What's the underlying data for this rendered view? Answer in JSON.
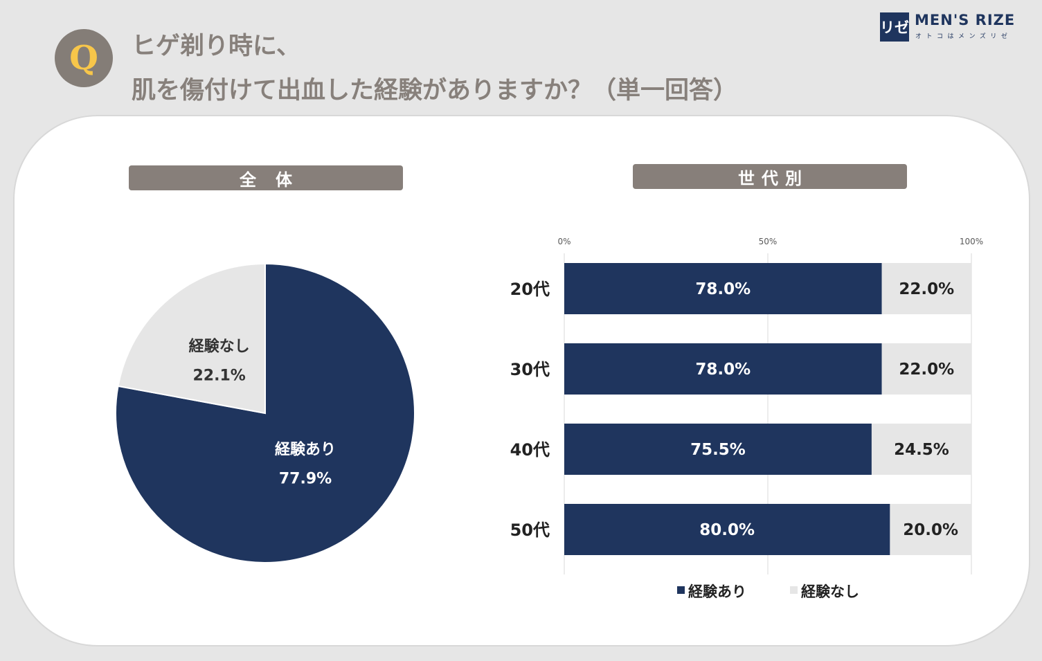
{
  "header": {
    "q_mark": "Q",
    "question_line1": "ヒゲ剃り時に、",
    "question_line2": "肌を傷付けて出血した経験がありますか？（単一回答）"
  },
  "logo": {
    "mark": "リゼ",
    "name": "MEN'S RIZE",
    "tagline": "オトコはメンズリゼ"
  },
  "sections": {
    "overall": "全体",
    "by_generation": "世代別"
  },
  "colors": {
    "yes": "#1f355e",
    "no": "#e6e6e6",
    "accent": "#f7c64a",
    "label_bg": "#877f7a"
  },
  "chart_data": [
    {
      "type": "pie",
      "title": "全体",
      "slices": [
        {
          "label": "経験あり",
          "value": 77.9,
          "display": "77.9%"
        },
        {
          "label": "経験なし",
          "value": 22.1,
          "display": "22.1%"
        }
      ]
    },
    {
      "type": "bar",
      "orientation": "horizontal",
      "stacked": true,
      "title": "世代別",
      "categories": [
        "20代",
        "30代",
        "40代",
        "50代"
      ],
      "series": [
        {
          "name": "経験あり",
          "values": [
            78.0,
            78.0,
            75.5,
            80.0
          ],
          "labels": [
            "78.0%",
            "78.0%",
            "75.5%",
            "80.0%"
          ]
        },
        {
          "name": "経験なし",
          "values": [
            22.0,
            22.0,
            24.5,
            20.0
          ],
          "labels": [
            "22.0%",
            "22.0%",
            "24.5%",
            "20.0%"
          ]
        }
      ],
      "xlim": [
        0,
        100
      ],
      "xticks": [
        "0%",
        "50%",
        "100%"
      ],
      "grid": true,
      "legend": "bottom"
    }
  ]
}
